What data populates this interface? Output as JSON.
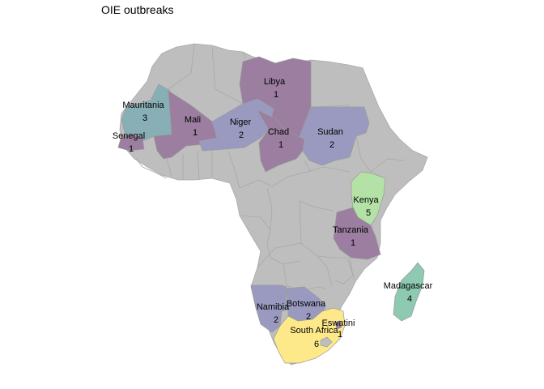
{
  "title": "OIE outbreaks",
  "palette": {
    "land": "#bebebe",
    "one": "#9b7ea0",
    "two": "#9a9ac0",
    "three": "#88afb5",
    "four": "#8ec9b2",
    "five": "#b4e2a6",
    "six": "#fde98a"
  },
  "countries": [
    {
      "name": "Libya",
      "outbreaks": "1"
    },
    {
      "name": "Mauritania",
      "outbreaks": "3"
    },
    {
      "name": "Mali",
      "outbreaks": "1"
    },
    {
      "name": "Niger",
      "outbreaks": "2"
    },
    {
      "name": "Chad",
      "outbreaks": "1"
    },
    {
      "name": "Sudan",
      "outbreaks": "2"
    },
    {
      "name": "Senegal",
      "outbreaks": "1"
    },
    {
      "name": "Kenya",
      "outbreaks": "5"
    },
    {
      "name": "Tanzania",
      "outbreaks": "1"
    },
    {
      "name": "Madagascar",
      "outbreaks": "4"
    },
    {
      "name": "Namibia",
      "outbreaks": "2"
    },
    {
      "name": "Botswana",
      "outbreaks": "2"
    },
    {
      "name": "Eswatini",
      "outbreaks": "1"
    },
    {
      "name": "South Africa",
      "outbreaks": "6"
    }
  ]
}
